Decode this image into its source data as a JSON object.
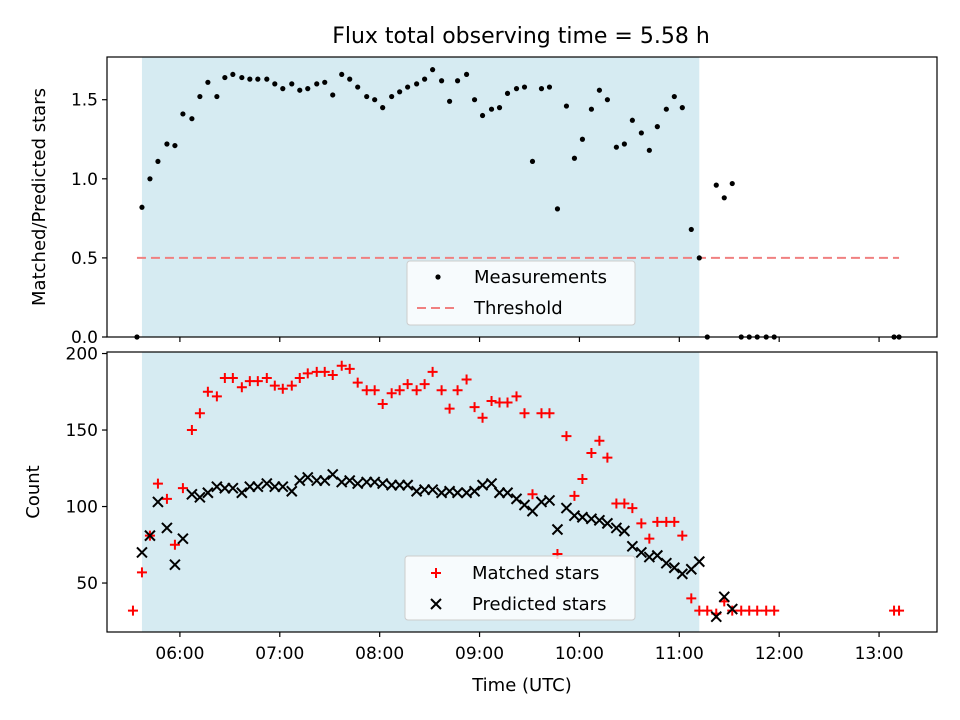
{
  "title": "Flux total observing time = 5.58 h",
  "chart_data": [
    {
      "type": "scatter",
      "ylabel": "Matched/Predicted stars",
      "xlabel": "",
      "xlim": [
        5.27,
        13.58
      ],
      "ylim": [
        0,
        1.77
      ],
      "yticks": [
        0.0,
        0.5,
        1.0,
        1.5
      ],
      "ytick_labels": [
        "0.0",
        "0.5",
        "1.0",
        "1.5"
      ],
      "highlight_span": [
        5.62,
        11.2
      ],
      "threshold": {
        "name": "Threshold",
        "value": 0.5,
        "x": [
          5.57,
          13.2
        ],
        "color": "#f08080"
      },
      "legend": {
        "position": "lower-center",
        "entries": [
          "Measurements",
          "Threshold"
        ]
      },
      "series": [
        {
          "name": "Measurements",
          "marker": "dot",
          "color": "#000000",
          "points": [
            [
              5.57,
              0.0
            ],
            [
              5.62,
              0.82
            ],
            [
              5.7,
              1.0
            ],
            [
              5.78,
              1.11
            ],
            [
              5.87,
              1.22
            ],
            [
              5.95,
              1.21
            ],
            [
              6.03,
              1.41
            ],
            [
              6.12,
              1.38
            ],
            [
              6.2,
              1.52
            ],
            [
              6.28,
              1.61
            ],
            [
              6.37,
              1.52
            ],
            [
              6.45,
              1.64
            ],
            [
              6.53,
              1.66
            ],
            [
              6.62,
              1.64
            ],
            [
              6.7,
              1.63
            ],
            [
              6.78,
              1.63
            ],
            [
              6.87,
              1.63
            ],
            [
              6.95,
              1.6
            ],
            [
              7.03,
              1.57
            ],
            [
              7.12,
              1.6
            ],
            [
              7.2,
              1.56
            ],
            [
              7.28,
              1.57
            ],
            [
              7.37,
              1.6
            ],
            [
              7.45,
              1.61
            ],
            [
              7.53,
              1.53
            ],
            [
              7.62,
              1.66
            ],
            [
              7.7,
              1.63
            ],
            [
              7.78,
              1.58
            ],
            [
              7.87,
              1.52
            ],
            [
              7.95,
              1.5
            ],
            [
              8.03,
              1.45
            ],
            [
              8.12,
              1.52
            ],
            [
              8.2,
              1.55
            ],
            [
              8.28,
              1.58
            ],
            [
              8.37,
              1.6
            ],
            [
              8.45,
              1.63
            ],
            [
              8.53,
              1.69
            ],
            [
              8.62,
              1.62
            ],
            [
              8.7,
              1.49
            ],
            [
              8.78,
              1.62
            ],
            [
              8.87,
              1.66
            ],
            [
              8.95,
              1.5
            ],
            [
              9.03,
              1.4
            ],
            [
              9.12,
              1.44
            ],
            [
              9.2,
              1.45
            ],
            [
              9.28,
              1.54
            ],
            [
              9.37,
              1.57
            ],
            [
              9.45,
              1.58
            ],
            [
              9.53,
              1.11
            ],
            [
              9.62,
              1.57
            ],
            [
              9.7,
              1.58
            ],
            [
              9.78,
              0.81
            ],
            [
              9.87,
              1.46
            ],
            [
              9.95,
              1.13
            ],
            [
              10.03,
              1.25
            ],
            [
              10.12,
              1.44
            ],
            [
              10.2,
              1.56
            ],
            [
              10.28,
              1.5
            ],
            [
              10.37,
              1.2
            ],
            [
              10.45,
              1.22
            ],
            [
              10.53,
              1.37
            ],
            [
              10.62,
              1.29
            ],
            [
              10.7,
              1.18
            ],
            [
              10.78,
              1.33
            ],
            [
              10.87,
              1.44
            ],
            [
              10.95,
              1.52
            ],
            [
              11.03,
              1.45
            ],
            [
              11.12,
              0.68
            ],
            [
              11.2,
              0.5
            ],
            [
              11.28,
              0.0
            ],
            [
              11.37,
              0.96
            ],
            [
              11.45,
              0.88
            ],
            [
              11.53,
              0.97
            ],
            [
              11.62,
              0.0
            ],
            [
              11.7,
              0.0
            ],
            [
              11.78,
              0.0
            ],
            [
              11.87,
              0.0
            ],
            [
              11.95,
              0.0
            ],
            [
              13.15,
              0.0
            ],
            [
              13.2,
              0.0
            ]
          ]
        }
      ]
    },
    {
      "type": "scatter",
      "ylabel": "Count",
      "xlabel": "Time (UTC)",
      "xlim": [
        5.27,
        13.58
      ],
      "ylim": [
        18,
        201
      ],
      "yticks": [
        50,
        100,
        150,
        200
      ],
      "ytick_labels": [
        "50",
        "100",
        "150",
        "200"
      ],
      "xticks": [
        6,
        7,
        8,
        9,
        10,
        11,
        12,
        13
      ],
      "xtick_labels": [
        "06:00",
        "07:00",
        "08:00",
        "09:00",
        "10:00",
        "11:00",
        "12:00",
        "13:00"
      ],
      "highlight_span": [
        5.62,
        11.2
      ],
      "legend": {
        "position": "lower-center",
        "entries": [
          "Matched stars",
          "Predicted stars"
        ]
      },
      "series": [
        {
          "name": "Matched stars",
          "marker": "plus",
          "color": "#ff0000",
          "points": [
            [
              5.53,
              32
            ],
            [
              5.62,
              57
            ],
            [
              5.7,
              81
            ],
            [
              5.78,
              115
            ],
            [
              5.87,
              105
            ],
            [
              5.95,
              75
            ],
            [
              6.03,
              112
            ],
            [
              6.12,
              150
            ],
            [
              6.2,
              161
            ],
            [
              6.28,
              175
            ],
            [
              6.37,
              172
            ],
            [
              6.45,
              184
            ],
            [
              6.53,
              184
            ],
            [
              6.62,
              178
            ],
            [
              6.7,
              182
            ],
            [
              6.78,
              182
            ],
            [
              6.87,
              184
            ],
            [
              6.95,
              179
            ],
            [
              7.03,
              177
            ],
            [
              7.12,
              179
            ],
            [
              7.2,
              184
            ],
            [
              7.28,
              187
            ],
            [
              7.37,
              188
            ],
            [
              7.45,
              188
            ],
            [
              7.53,
              186
            ],
            [
              7.62,
              192
            ],
            [
              7.7,
              190
            ],
            [
              7.78,
              181
            ],
            [
              7.87,
              176
            ],
            [
              7.95,
              176
            ],
            [
              8.03,
              167
            ],
            [
              8.12,
              174
            ],
            [
              8.2,
              176
            ],
            [
              8.28,
              180
            ],
            [
              8.37,
              176
            ],
            [
              8.45,
              180
            ],
            [
              8.53,
              188
            ],
            [
              8.62,
              176
            ],
            [
              8.7,
              164
            ],
            [
              8.78,
              176
            ],
            [
              8.87,
              183
            ],
            [
              8.95,
              165
            ],
            [
              9.03,
              158
            ],
            [
              9.12,
              169
            ],
            [
              9.2,
              168
            ],
            [
              9.28,
              168
            ],
            [
              9.37,
              172
            ],
            [
              9.45,
              161
            ],
            [
              9.53,
              108
            ],
            [
              9.62,
              161
            ],
            [
              9.7,
              161
            ],
            [
              9.78,
              69
            ],
            [
              9.87,
              146
            ],
            [
              9.95,
              107
            ],
            [
              10.03,
              118
            ],
            [
              10.12,
              135
            ],
            [
              10.2,
              143
            ],
            [
              10.28,
              132
            ],
            [
              10.37,
              102
            ],
            [
              10.45,
              102
            ],
            [
              10.53,
              99
            ],
            [
              10.62,
              89
            ],
            [
              10.7,
              79
            ],
            [
              10.78,
              90
            ],
            [
              10.87,
              90
            ],
            [
              10.95,
              90
            ],
            [
              11.03,
              81
            ],
            [
              11.12,
              40
            ],
            [
              11.2,
              32
            ],
            [
              11.28,
              32
            ],
            [
              11.37,
              30
            ],
            [
              11.45,
              38
            ],
            [
              11.53,
              32
            ],
            [
              11.62,
              32
            ],
            [
              11.7,
              32
            ],
            [
              11.78,
              32
            ],
            [
              11.87,
              32
            ],
            [
              11.95,
              32
            ],
            [
              13.15,
              32
            ],
            [
              13.2,
              32
            ]
          ]
        },
        {
          "name": "Predicted stars",
          "marker": "x",
          "color": "#000000",
          "points": [
            [
              5.62,
              70
            ],
            [
              5.7,
              81
            ],
            [
              5.78,
              103
            ],
            [
              5.87,
              86
            ],
            [
              5.95,
              62
            ],
            [
              6.03,
              79
            ],
            [
              6.12,
              108
            ],
            [
              6.2,
              106
            ],
            [
              6.28,
              109
            ],
            [
              6.37,
              113
            ],
            [
              6.45,
              112
            ],
            [
              6.53,
              112
            ],
            [
              6.62,
              109
            ],
            [
              6.7,
              113
            ],
            [
              6.78,
              113
            ],
            [
              6.87,
              115
            ],
            [
              6.95,
              113
            ],
            [
              7.03,
              113
            ],
            [
              7.12,
              110
            ],
            [
              7.2,
              117
            ],
            [
              7.28,
              119
            ],
            [
              7.37,
              117
            ],
            [
              7.45,
              117
            ],
            [
              7.53,
              121
            ],
            [
              7.62,
              116
            ],
            [
              7.7,
              117
            ],
            [
              7.78,
              115
            ],
            [
              7.87,
              116
            ],
            [
              7.95,
              116
            ],
            [
              8.03,
              115
            ],
            [
              8.12,
              114
            ],
            [
              8.2,
              114
            ],
            [
              8.28,
              114
            ],
            [
              8.37,
              110
            ],
            [
              8.45,
              111
            ],
            [
              8.53,
              111
            ],
            [
              8.62,
              109
            ],
            [
              8.7,
              110
            ],
            [
              8.78,
              109
            ],
            [
              8.87,
              109
            ],
            [
              8.95,
              110
            ],
            [
              9.03,
              114
            ],
            [
              9.12,
              115
            ],
            [
              9.2,
              109
            ],
            [
              9.28,
              109
            ],
            [
              9.37,
              105
            ],
            [
              9.45,
              101
            ],
            [
              9.53,
              97
            ],
            [
              9.62,
              103
            ],
            [
              9.7,
              104
            ],
            [
              9.78,
              85
            ],
            [
              9.87,
              99
            ],
            [
              9.95,
              94
            ],
            [
              10.03,
              93
            ],
            [
              10.12,
              92
            ],
            [
              10.2,
              91
            ],
            [
              10.28,
              89
            ],
            [
              10.37,
              86
            ],
            [
              10.45,
              84
            ],
            [
              10.53,
              74
            ],
            [
              10.62,
              70
            ],
            [
              10.7,
              67
            ],
            [
              10.78,
              68
            ],
            [
              10.87,
              63
            ],
            [
              10.95,
              60
            ],
            [
              11.03,
              56
            ],
            [
              11.12,
              59
            ],
            [
              11.2,
              64
            ],
            [
              11.37,
              28
            ],
            [
              11.45,
              41
            ],
            [
              11.53,
              33
            ]
          ]
        }
      ]
    }
  ]
}
